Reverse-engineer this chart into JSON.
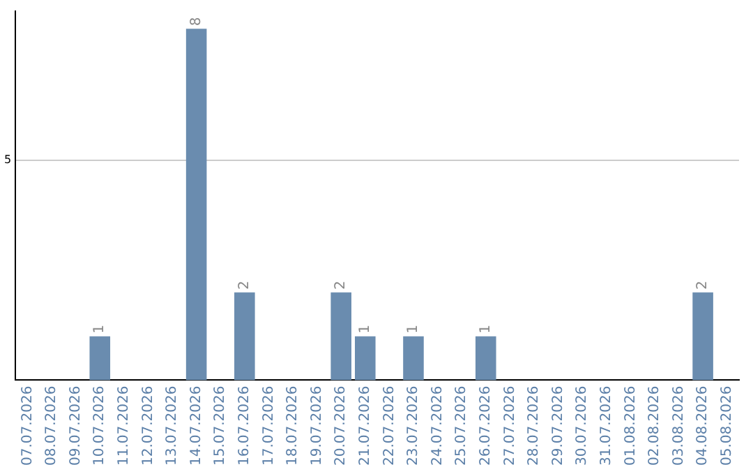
{
  "chart_data": {
    "type": "bar",
    "categories": [
      "07.07.2026",
      "08.07.2026",
      "09.07.2026",
      "10.07.2026",
      "11.07.2026",
      "12.07.2026",
      "13.07.2026",
      "14.07.2026",
      "15.07.2026",
      "16.07.2026",
      "17.07.2026",
      "18.07.2026",
      "19.07.2026",
      "20.07.2026",
      "21.07.2026",
      "22.07.2026",
      "23.07.2026",
      "24.07.2026",
      "25.07.2026",
      "26.07.2026",
      "27.07.2026",
      "28.07.2026",
      "29.07.2026",
      "30.07.2026",
      "31.07.2026",
      "01.08.2026",
      "02.08.2026",
      "03.08.2026",
      "04.08.2026",
      "05.08.2026"
    ],
    "values": [
      0,
      0,
      0,
      1,
      0,
      0,
      0,
      8,
      0,
      2,
      0,
      0,
      0,
      2,
      1,
      0,
      1,
      0,
      0,
      1,
      0,
      0,
      0,
      0,
      0,
      0,
      0,
      0,
      2,
      0
    ],
    "value_labels": [
      null,
      null,
      null,
      "1",
      null,
      null,
      null,
      "8",
      null,
      "2",
      null,
      null,
      null,
      "2",
      "1",
      null,
      "1",
      null,
      null,
      "1",
      null,
      null,
      null,
      null,
      null,
      null,
      null,
      null,
      "2",
      null
    ],
    "color": "#6a8caf",
    "ylim": [
      0,
      8.4
    ],
    "yticks": [
      5
    ],
    "grid": "y"
  }
}
